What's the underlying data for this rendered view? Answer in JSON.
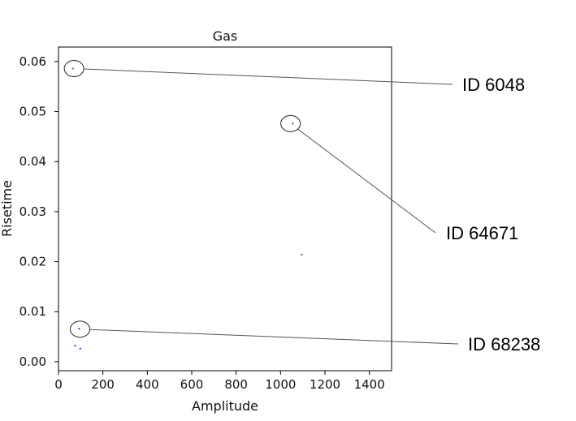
{
  "chart_data": {
    "type": "scatter",
    "title": "Gas",
    "xlabel": "Amplitude",
    "ylabel": "Risetime",
    "xlim": [
      0,
      1500
    ],
    "ylim": [
      -0.0018,
      0.0629
    ],
    "x_ticks": [
      0,
      200,
      400,
      600,
      800,
      1000,
      1200,
      1400
    ],
    "y_ticks": [
      0.0,
      0.01,
      0.02,
      0.03,
      0.04,
      0.05,
      0.06
    ],
    "y_tick_labels": [
      "0.00",
      "0.01",
      "0.02",
      "0.03",
      "0.04",
      "0.05",
      "0.06"
    ],
    "grid": false,
    "points": [
      {
        "x": 65,
        "y": 0.0586,
        "color": "#7a5c8c"
      },
      {
        "x": 1055,
        "y": 0.0476,
        "color": "#b04a6a"
      },
      {
        "x": 1095,
        "y": 0.0214,
        "color": "#7a5c8c"
      },
      {
        "x": 93,
        "y": 0.0066,
        "color": "#3060c0"
      },
      {
        "x": 75,
        "y": 0.0032,
        "color": "#3060c0"
      },
      {
        "x": 98,
        "y": 0.0026,
        "color": "#3060c0"
      }
    ],
    "annotations": [
      {
        "label": "ID 6048",
        "x": 70,
        "y": 0.0586
      },
      {
        "label": "ID 64671",
        "x": 1045,
        "y": 0.0476
      },
      {
        "label": "ID 68238",
        "x": 97,
        "y": 0.0065
      }
    ]
  }
}
